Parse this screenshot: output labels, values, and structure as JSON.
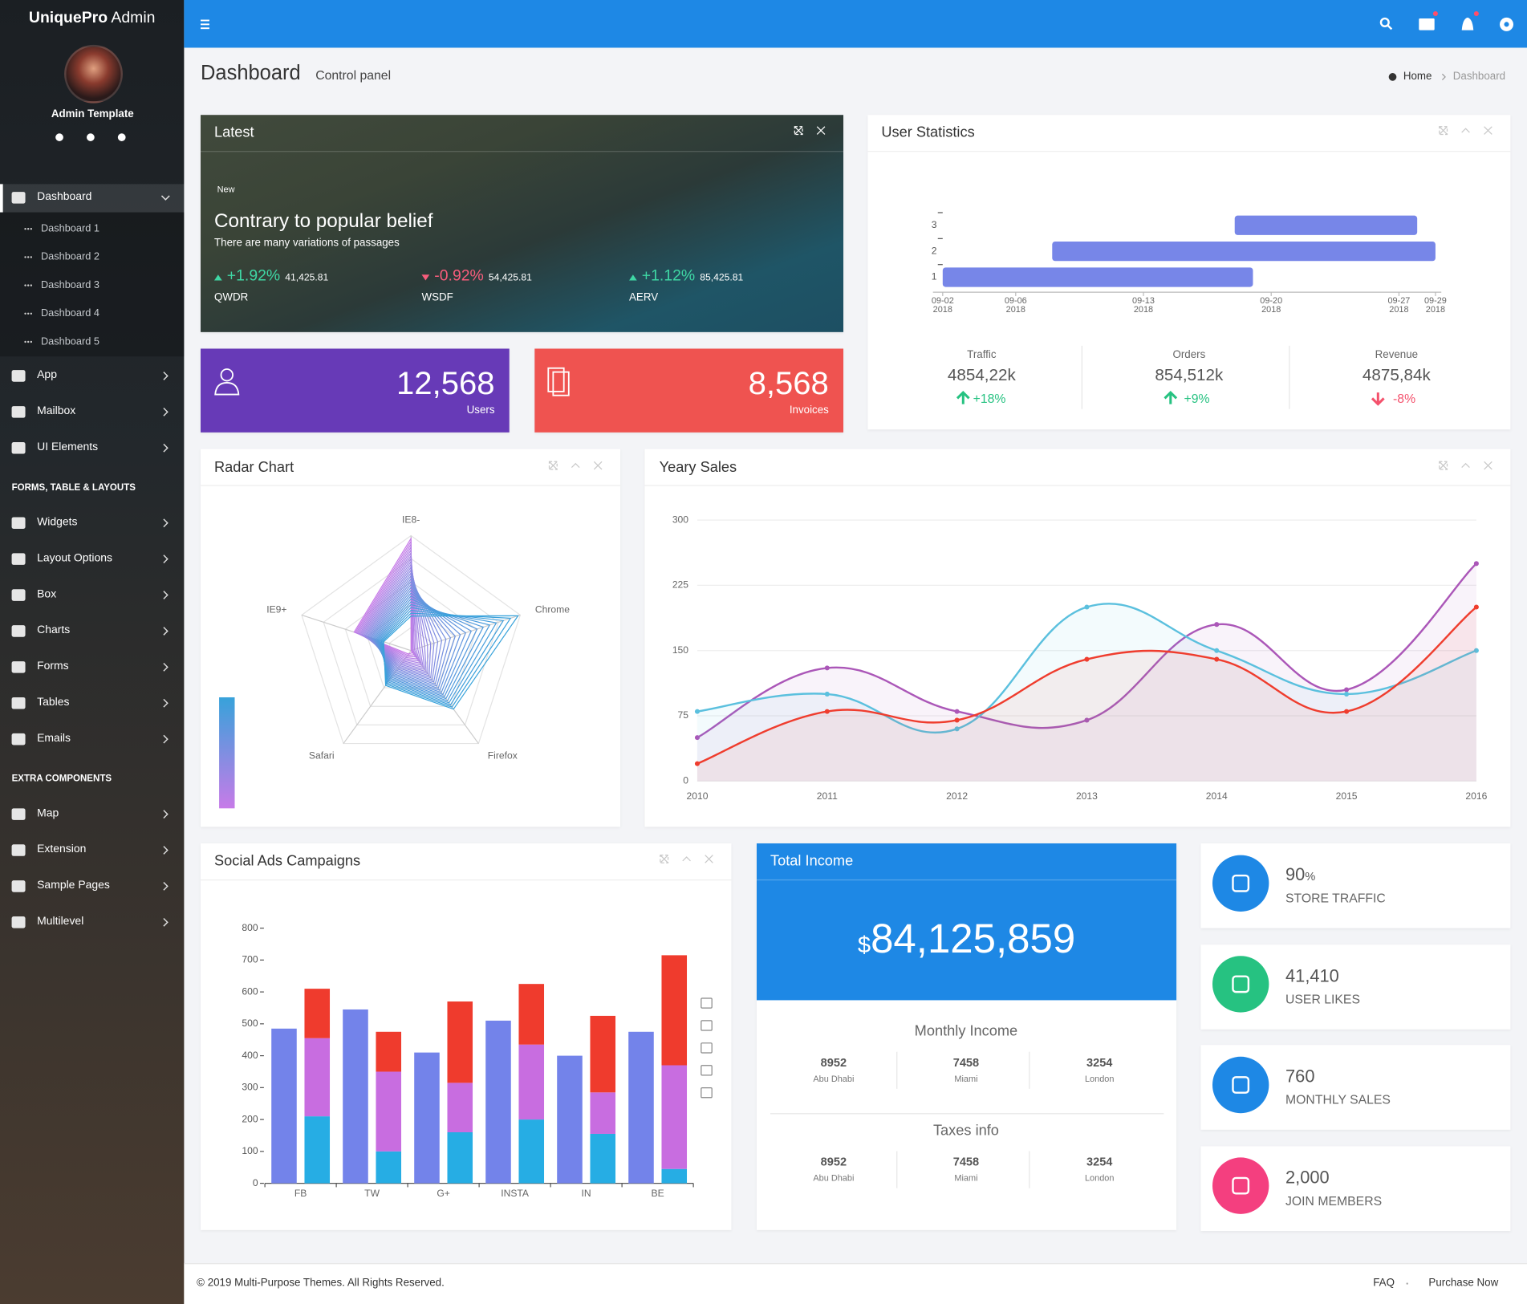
{
  "sidebar": {
    "brand": "UniquePro",
    "brand_suffix": "Admin",
    "user": "Admin Template",
    "menu": [
      {
        "label": "Dashboard",
        "children": [
          "Dashboard 1",
          "Dashboard 2",
          "Dashboard 3",
          "Dashboard 4",
          "Dashboard 5"
        ]
      },
      {
        "label": "App"
      },
      {
        "label": "Mailbox"
      },
      {
        "label": "UI Elements"
      },
      {
        "section": "FORMS, TABLE & LAYOUTS"
      },
      {
        "label": "Widgets"
      },
      {
        "label": "Layout Options"
      },
      {
        "label": "Box"
      },
      {
        "label": "Charts"
      },
      {
        "label": "Forms"
      },
      {
        "label": "Tables"
      },
      {
        "label": "Emails"
      },
      {
        "section": "EXTRA COMPONENTS"
      },
      {
        "label": "Map"
      },
      {
        "label": "Extension"
      },
      {
        "label": "Sample Pages"
      },
      {
        "label": "Multilevel"
      }
    ]
  },
  "header": {
    "title": "Dashboard",
    "subtitle": "Control panel",
    "breadcrumb": [
      "Home",
      "Dashboard"
    ]
  },
  "latest": {
    "title": "Latest",
    "badge": "New",
    "headline": "Contrary to popular belief",
    "text": "There are many variations of passages",
    "tickers": [
      {
        "change": "+1.92%",
        "value": "41,425.81",
        "symbol": "QWDR",
        "direction": "up"
      },
      {
        "change": "-0.92%",
        "value": "54,425.81",
        "symbol": "WSDF",
        "direction": "down"
      },
      {
        "change": "+1.12%",
        "value": "85,425.81",
        "symbol": "AERV",
        "direction": "up"
      }
    ]
  },
  "stat_boxes": [
    {
      "value": "12,568",
      "label": "Users",
      "color": "#673ab7"
    },
    {
      "value": "8,568",
      "label": "Invoices",
      "color": "#ef5350"
    }
  ],
  "user_statistics": {
    "summary": [
      {
        "label": "Traffic",
        "value": "4854,22k",
        "change": "+18%",
        "direction": "up"
      },
      {
        "label": "Orders",
        "value": "854,512k",
        "change": "+9%",
        "direction": "up"
      },
      {
        "label": "Revenue",
        "value": "4875,84k",
        "change": "-8%",
        "direction": "down"
      }
    ]
  },
  "total_income": {
    "title": "Total Income",
    "currency": "$",
    "amount": "84,125,859",
    "groups": [
      {
        "title": "Monthly Income",
        "items": [
          {
            "value": "8952",
            "city": "Abu Dhabi"
          },
          {
            "value": "7458",
            "city": "Miami"
          },
          {
            "value": "3254",
            "city": "London"
          }
        ]
      },
      {
        "title": "Taxes info",
        "items": [
          {
            "value": "8952",
            "city": "Abu Dhabi"
          },
          {
            "value": "7458",
            "city": "Miami"
          },
          {
            "value": "3254",
            "city": "London"
          }
        ]
      }
    ]
  },
  "info_boxes": [
    {
      "value": "90",
      "unit": "%",
      "label": "STORE TRAFFIC",
      "color": "#1e88e5"
    },
    {
      "value": "41,410",
      "label": "USER LIKES",
      "color": "#26c281"
    },
    {
      "value": "760",
      "label": "MONTHLY SALES",
      "color": "#1e88e5"
    },
    {
      "value": "2,000",
      "label": "JOIN MEMBERS",
      "color": "#f43f7f"
    }
  ],
  "footer": {
    "copyright": "© 2019 Multi-Purpose Themes. All Rights Reserved.",
    "links": [
      "FAQ",
      "Purchase Now"
    ]
  },
  "chart_data": [
    {
      "type": "gantt",
      "title": "User Statistics",
      "color": "#7786e8",
      "tasks": [
        {
          "y": 1,
          "start": "2018-09-02",
          "end": "2018-09-19"
        },
        {
          "y": 2,
          "start": "2018-09-08",
          "end": "2018-09-29"
        },
        {
          "y": 3,
          "start": "2018-09-18",
          "end": "2018-09-28"
        }
      ],
      "xlim": [
        "2018-09-02",
        "2018-09-29"
      ],
      "xticks": [
        {
          "value": "2018-09-02",
          "label": [
            "09-02",
            "2018"
          ]
        },
        {
          "value": "2018-09-06",
          "label": [
            "09-06",
            "2018"
          ]
        },
        {
          "value": "2018-09-13",
          "label": [
            "09-13",
            "2018"
          ]
        },
        {
          "value": "2018-09-20",
          "label": [
            "09-20",
            "2018"
          ]
        },
        {
          "value": "2018-09-27",
          "label": [
            "09-27",
            "2018"
          ]
        },
        {
          "value": "2018-09-29",
          "label": [
            "09-29",
            "2018"
          ]
        }
      ],
      "ylim": [
        0.5,
        3.5
      ],
      "yticks": [
        1,
        2,
        3
      ]
    },
    {
      "type": "radar",
      "title": "Radar Chart",
      "indicators": [
        "IE8-",
        "IE9+",
        "Safari",
        "Firefox",
        "Chrome"
      ],
      "rlim": [
        0,
        400
      ],
      "colors": [
        "#c77be8",
        "#37a2da"
      ],
      "series": [
        {
          "values": [
            390,
            208,
            15,
            9,
            0.5
          ]
        },
        {
          "values": [
            380,
            204,
            20,
            18,
            2
          ]
        },
        {
          "values": [
            370,
            200,
            25,
            27,
            4.5
          ]
        },
        {
          "values": [
            360,
            196,
            30,
            36,
            8
          ]
        },
        {
          "values": [
            350,
            192,
            35,
            45,
            12.5
          ]
        },
        {
          "values": [
            340,
            188,
            40,
            54,
            18
          ]
        },
        {
          "values": [
            330,
            184,
            45,
            63,
            24.5
          ]
        },
        {
          "values": [
            320,
            180,
            50,
            72,
            32
          ]
        },
        {
          "values": [
            310,
            176,
            55,
            81,
            40.5
          ]
        },
        {
          "values": [
            300,
            172,
            60,
            90,
            50
          ]
        },
        {
          "values": [
            290,
            168,
            65,
            99,
            60.5
          ]
        },
        {
          "values": [
            280,
            164,
            70,
            108,
            72
          ]
        },
        {
          "values": [
            270,
            160,
            75,
            117,
            84.5
          ]
        },
        {
          "values": [
            260,
            156,
            80,
            126,
            98
          ]
        },
        {
          "values": [
            250,
            152,
            85,
            135,
            112.5
          ]
        },
        {
          "values": [
            240,
            148,
            90,
            144,
            128
          ]
        },
        {
          "values": [
            230,
            144,
            95,
            153,
            144.5
          ]
        },
        {
          "values": [
            220,
            140,
            100,
            162,
            162
          ]
        },
        {
          "values": [
            210,
            136,
            105,
            171,
            180.5
          ]
        },
        {
          "values": [
            200,
            132,
            110,
            180,
            200
          ]
        },
        {
          "values": [
            190,
            128,
            115,
            189,
            220.5
          ]
        },
        {
          "values": [
            180,
            124,
            120,
            198,
            242
          ]
        },
        {
          "values": [
            170,
            120,
            125,
            207,
            264.5
          ]
        },
        {
          "values": [
            160,
            116,
            130,
            216,
            288
          ]
        },
        {
          "values": [
            150,
            112,
            135,
            225,
            312.5
          ]
        },
        {
          "values": [
            140,
            108,
            140,
            234,
            338
          ]
        },
        {
          "values": [
            130,
            104,
            145,
            243,
            364.5
          ]
        },
        {
          "values": [
            120,
            100,
            150,
            252,
            392
          ]
        }
      ]
    },
    {
      "type": "line",
      "title": "Yeary Sales",
      "categories": [
        "2010",
        "2011",
        "2012",
        "2013",
        "2014",
        "2015",
        "2016"
      ],
      "series": [
        {
          "color": "#ab57b8",
          "values": [
            50,
            130,
            80,
            70,
            180,
            105,
            250
          ]
        },
        {
          "color": "#5bc0de",
          "values": [
            80,
            100,
            60,
            200,
            150,
            100,
            150
          ]
        },
        {
          "color": "#ef3d2e",
          "values": [
            20,
            80,
            70,
            140,
            140,
            80,
            200
          ]
        }
      ],
      "ylim": [
        0,
        300
      ],
      "yticks": [
        0,
        75,
        150,
        225,
        300
      ],
      "grid": true,
      "smooth": true,
      "area": true
    },
    {
      "type": "bar",
      "title": "Social Ads Campaigns",
      "categories": [
        "FB",
        "TW",
        "G+",
        "INSTA",
        "IN",
        "BE"
      ],
      "series": [
        {
          "color": "#7383ea",
          "values": [
            485,
            545,
            410,
            510,
            400,
            475
          ]
        },
        {
          "color": "#26ade4",
          "values": [
            210,
            100,
            160,
            200,
            155,
            45
          ]
        },
        {
          "color": "#c86de0",
          "values": [
            245,
            250,
            155,
            235,
            130,
            325
          ]
        },
        {
          "color": "#ef3b2d",
          "values": [
            155,
            125,
            255,
            190,
            240,
            345
          ]
        }
      ],
      "stack_groups": [
        [
          0
        ],
        [
          1,
          2,
          3
        ]
      ],
      "ylim": [
        0,
        800
      ],
      "yticks": [
        0,
        100,
        200,
        300,
        400,
        500,
        600,
        700,
        800
      ]
    }
  ]
}
